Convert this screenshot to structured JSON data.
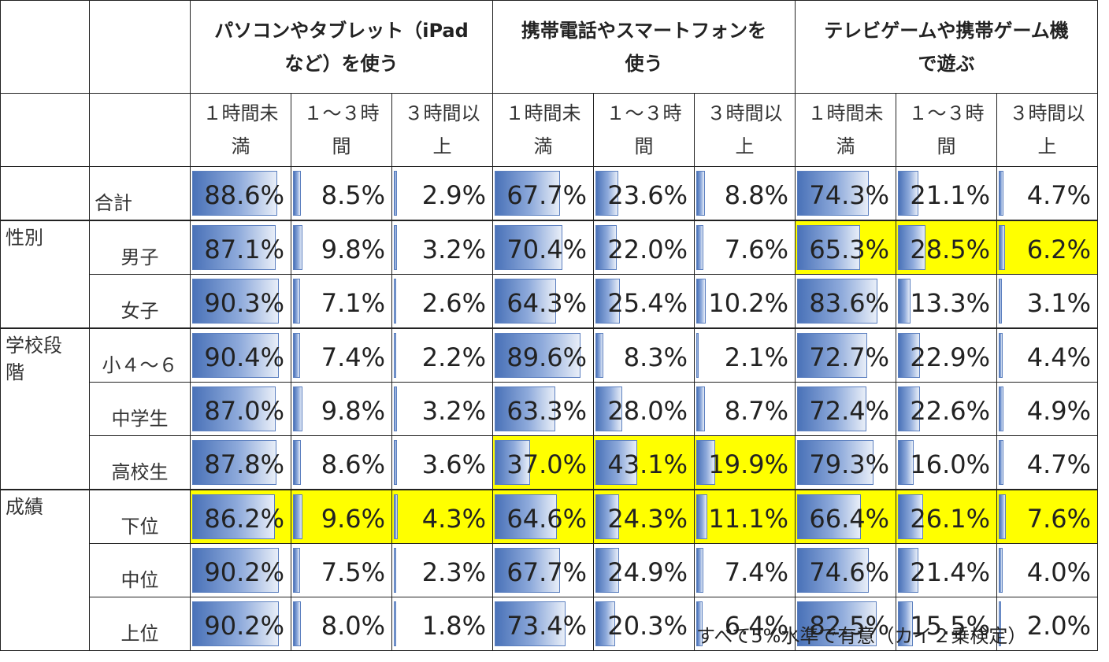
{
  "headers": {
    "groups": [
      {
        "line1": "パソコンやタブレット（iPad",
        "line2": "など）を使う"
      },
      {
        "line1": "携帯電話やスマートフォンを",
        "line2": "使う"
      },
      {
        "line1": "テレビゲームや携帯ゲーム機",
        "line2": "で遊ぶ"
      }
    ],
    "subs": [
      {
        "line1": "１時間未",
        "line2": "満"
      },
      {
        "line1": "１～３時",
        "line2": "間"
      },
      {
        "line1": "３時間以",
        "line2": "上"
      }
    ]
  },
  "groups": [
    {
      "label_line1": "性別",
      "label_line2": ""
    },
    {
      "label_line1": "学校段",
      "label_line2": "階"
    },
    {
      "label_line1": "成績",
      "label_line2": ""
    }
  ],
  "row_labels": [
    "合計",
    "男子",
    "女子",
    "小４～６",
    "中学生",
    "高校生",
    "下位",
    "中位",
    "上位"
  ],
  "cells": [
    [
      "88.6%",
      "8.5%",
      "2.9%",
      "67.7%",
      "23.6%",
      "8.8%",
      "74.3%",
      "21.1%",
      "4.7%"
    ],
    [
      "87.1%",
      "9.8%",
      "3.2%",
      "70.4%",
      "22.0%",
      "7.6%",
      "65.3%",
      "28.5%",
      "6.2%"
    ],
    [
      "90.3%",
      "7.1%",
      "2.6%",
      "64.3%",
      "25.4%",
      "10.2%",
      "83.6%",
      "13.3%",
      "3.1%"
    ],
    [
      "90.4%",
      "7.4%",
      "2.2%",
      "89.6%",
      "8.3%",
      "2.1%",
      "72.7%",
      "22.9%",
      "4.4%"
    ],
    [
      "87.0%",
      "9.8%",
      "3.2%",
      "63.3%",
      "28.0%",
      "8.7%",
      "72.4%",
      "22.6%",
      "4.9%"
    ],
    [
      "87.8%",
      "8.6%",
      "3.6%",
      "37.0%",
      "43.1%",
      "19.9%",
      "79.3%",
      "16.0%",
      "4.7%"
    ],
    [
      "86.2%",
      "9.6%",
      "4.3%",
      "64.6%",
      "24.3%",
      "11.1%",
      "66.4%",
      "26.1%",
      "7.6%"
    ],
    [
      "90.2%",
      "7.5%",
      "2.3%",
      "67.7%",
      "24.9%",
      "7.4%",
      "74.6%",
      "21.4%",
      "4.0%"
    ],
    [
      "90.2%",
      "8.0%",
      "1.8%",
      "73.4%",
      "20.3%",
      "6.4%",
      "82.5%",
      "15.5%",
      "2.0%"
    ]
  ],
  "chart_data": {
    "type": "table",
    "series_groups": [
      "パソコンやタブレット（iPadなど）を使う",
      "携帯電話やスマートフォンを使う",
      "テレビゲームや携帯ゲーム機で遊ぶ"
    ],
    "columns": [
      "１時間未満",
      "１～３時間",
      "３時間以上"
    ],
    "rows": [
      "合計",
      "男子",
      "女子",
      "小４～６",
      "中学生",
      "高校生",
      "下位",
      "中位",
      "上位"
    ],
    "values": [
      [
        88.6,
        8.5,
        2.9,
        67.7,
        23.6,
        8.8,
        74.3,
        21.1,
        4.7
      ],
      [
        87.1,
        9.8,
        3.2,
        70.4,
        22.0,
        7.6,
        65.3,
        28.5,
        6.2
      ],
      [
        90.3,
        7.1,
        2.6,
        64.3,
        25.4,
        10.2,
        83.6,
        13.3,
        3.1
      ],
      [
        90.4,
        7.4,
        2.2,
        89.6,
        8.3,
        2.1,
        72.7,
        22.9,
        4.4
      ],
      [
        87.0,
        9.8,
        3.2,
        63.3,
        28.0,
        8.7,
        72.4,
        22.6,
        4.9
      ],
      [
        87.8,
        8.6,
        3.6,
        37.0,
        43.1,
        19.9,
        79.3,
        16.0,
        4.7
      ],
      [
        86.2,
        9.6,
        4.3,
        64.6,
        24.3,
        11.1,
        66.4,
        26.1,
        7.6
      ],
      [
        90.2,
        7.5,
        2.3,
        67.7,
        24.9,
        7.4,
        74.6,
        21.4,
        4.0
      ],
      [
        90.2,
        8.0,
        1.8,
        73.4,
        20.3,
        6.4,
        82.5,
        15.5,
        2.0
      ]
    ],
    "highlighted": [
      {
        "row": 1,
        "cols": [
          6,
          7,
          8
        ]
      },
      {
        "row": 5,
        "cols": [
          3,
          4,
          5
        ]
      },
      {
        "row": 6,
        "cols": [
          0,
          1,
          2,
          3,
          4,
          5,
          6,
          7,
          8
        ]
      }
    ],
    "highlight_color": "#ffff00",
    "bar_color": "#4a72b8"
  },
  "footnote": "すべて5%水準で有意（カイ２乗検定）"
}
